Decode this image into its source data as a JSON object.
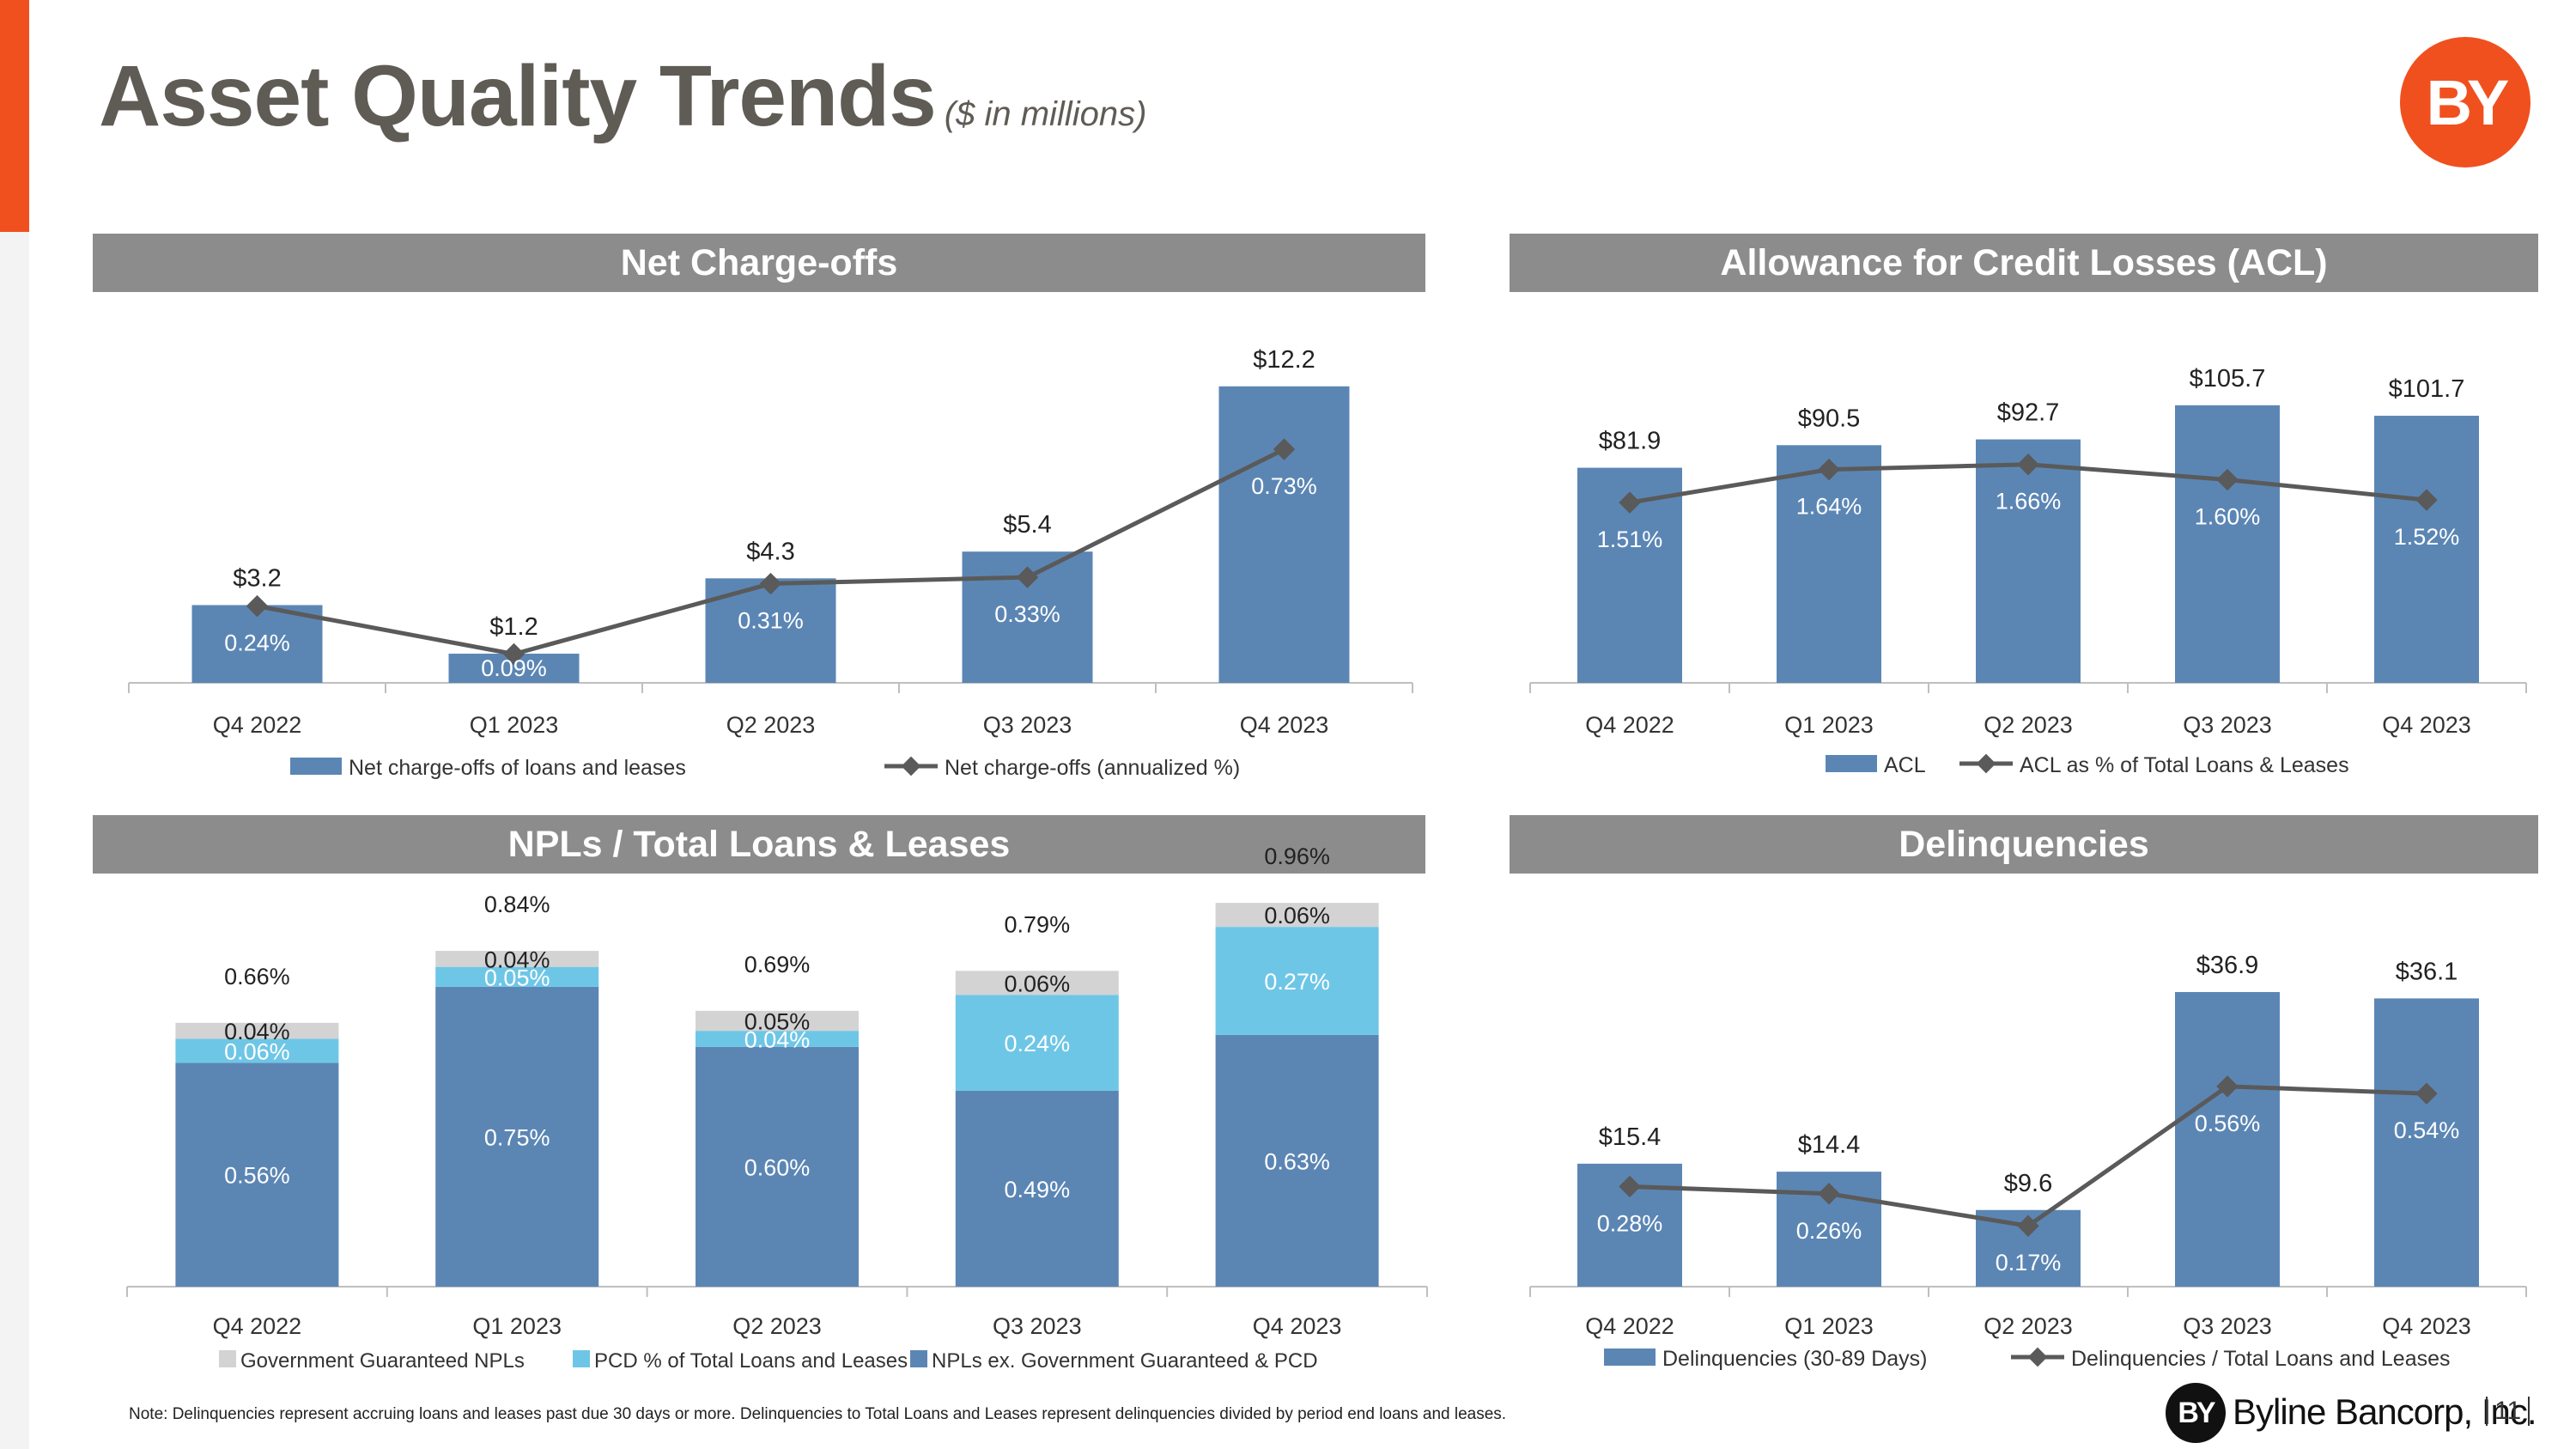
{
  "header": {
    "title": "Asset Quality Trends",
    "subtitle": "($ in millions)",
    "logo_text": "BY"
  },
  "colors": {
    "accent": "#F0501E",
    "bar": "#5B86B4",
    "bar_light": "#6EC6E6",
    "bar_gray": "#D3D3D3",
    "line": "#5a5a5a",
    "header_bg": "#8c8c8c"
  },
  "panels": {
    "net_charge_offs": "Net Charge-offs",
    "acl": "Allowance for Credit Losses (ACL)",
    "npls": "NPLs / Total Loans & Leases",
    "delinquencies": "Delinquencies"
  },
  "chart_data": [
    {
      "id": "net_charge_offs",
      "type": "bar",
      "title": "Net Charge-offs",
      "categories": [
        "Q4 2022",
        "Q1 2023",
        "Q2 2023",
        "Q3 2023",
        "Q4 2023"
      ],
      "bar_series": {
        "name": "Net charge-offs of loans and leases",
        "values": [
          3.2,
          1.2,
          4.3,
          5.4,
          12.2
        ],
        "labels": [
          "$3.2",
          "$1.2",
          "$4.3",
          "$5.4",
          "$12.2"
        ]
      },
      "line_series": {
        "name": "Net charge-offs (annualized %)",
        "values": [
          0.24,
          0.09,
          0.31,
          0.33,
          0.73
        ],
        "labels": [
          "0.24%",
          "0.09%",
          "0.31%",
          "0.33%",
          "0.73%"
        ]
      },
      "bar_max": 12.9,
      "line_range": [
        0.0,
        0.98
      ]
    },
    {
      "id": "acl",
      "type": "bar",
      "title": "Allowance for Credit Losses (ACL)",
      "categories": [
        "Q4 2022",
        "Q1 2023",
        "Q2 2023",
        "Q3 2023",
        "Q4 2023"
      ],
      "bar_series": {
        "name": "ACL",
        "values": [
          81.9,
          90.5,
          92.7,
          105.7,
          101.7
        ],
        "labels": [
          "$81.9",
          "$90.5",
          "$92.7",
          "$105.7",
          "$101.7"
        ]
      },
      "line_series": {
        "name": "ACL as % of Total Loans & Leases",
        "values": [
          1.51,
          1.64,
          1.66,
          1.6,
          1.52
        ],
        "labels": [
          "1.51%",
          "1.64%",
          "1.66%",
          "1.60%",
          "1.52%"
        ]
      },
      "bar_max": 111.2,
      "line_range": [
        0.8,
        1.95
      ]
    },
    {
      "id": "npls",
      "type": "stacked-bar",
      "title": "NPLs / Total Loans & Leases",
      "categories": [
        "Q4 2022",
        "Q1 2023",
        "Q2 2023",
        "Q3 2023",
        "Q4 2023"
      ],
      "series": [
        {
          "name": "NPLs ex. Government Guaranteed & PCD",
          "values": [
            0.56,
            0.75,
            0.6,
            0.49,
            0.63
          ],
          "labels": [
            "0.56%",
            "0.75%",
            "0.60%",
            "0.49%",
            "0.63%"
          ]
        },
        {
          "name": "PCD % of Total Loans and Leases",
          "values": [
            0.06,
            0.05,
            0.04,
            0.24,
            0.27
          ],
          "labels": [
            "0.06%",
            "0.05%",
            "0.04%",
            "0.24%",
            "0.27%"
          ]
        },
        {
          "name": "Government Guaranteed NPLs",
          "values": [
            0.04,
            0.04,
            0.05,
            0.06,
            0.06
          ],
          "labels": [
            "0.04%",
            "0.04%",
            "0.05%",
            "0.06%",
            "0.06%"
          ]
        }
      ],
      "totals": [
        "0.66%",
        "0.84%",
        "0.69%",
        "0.79%",
        "0.96%"
      ],
      "legend_order": [
        "Government Guaranteed NPLs",
        "PCD % of Total Loans and Leases",
        "NPLs ex. Government Guaranteed & PCD"
      ],
      "ylim": [
        0,
        1.07
      ]
    },
    {
      "id": "delinquencies",
      "type": "bar",
      "title": "Delinquencies",
      "categories": [
        "Q4 2022",
        "Q1 2023",
        "Q2 2023",
        "Q3 2023",
        "Q4 2023"
      ],
      "bar_series": {
        "name": "Delinquencies (30-89 Days)",
        "values": [
          15.4,
          14.4,
          9.6,
          36.9,
          36.1
        ],
        "labels": [
          "$15.4",
          "$14.4",
          "$9.6",
          "$36.9",
          "$36.1"
        ]
      },
      "line_series": {
        "name": "Delinquencies / Total Loans and Leases",
        "values": [
          0.28,
          0.26,
          0.17,
          0.56,
          0.54
        ],
        "labels": [
          "0.28%",
          "0.26%",
          "0.17%",
          "0.56%",
          "0.54%"
        ]
      },
      "bar_max": 41.2,
      "line_range": [
        0.0,
        0.92
      ]
    }
  ],
  "footer": {
    "note": "Note: Delinquencies represent accruing loans and leases past due 30 days or more. Delinquencies to Total Loans and Leases represent delinquencies divided by period end loans and leases.",
    "logo_text": "BY",
    "company": "Byline Bancorp, Inc.",
    "page_number": "11"
  }
}
